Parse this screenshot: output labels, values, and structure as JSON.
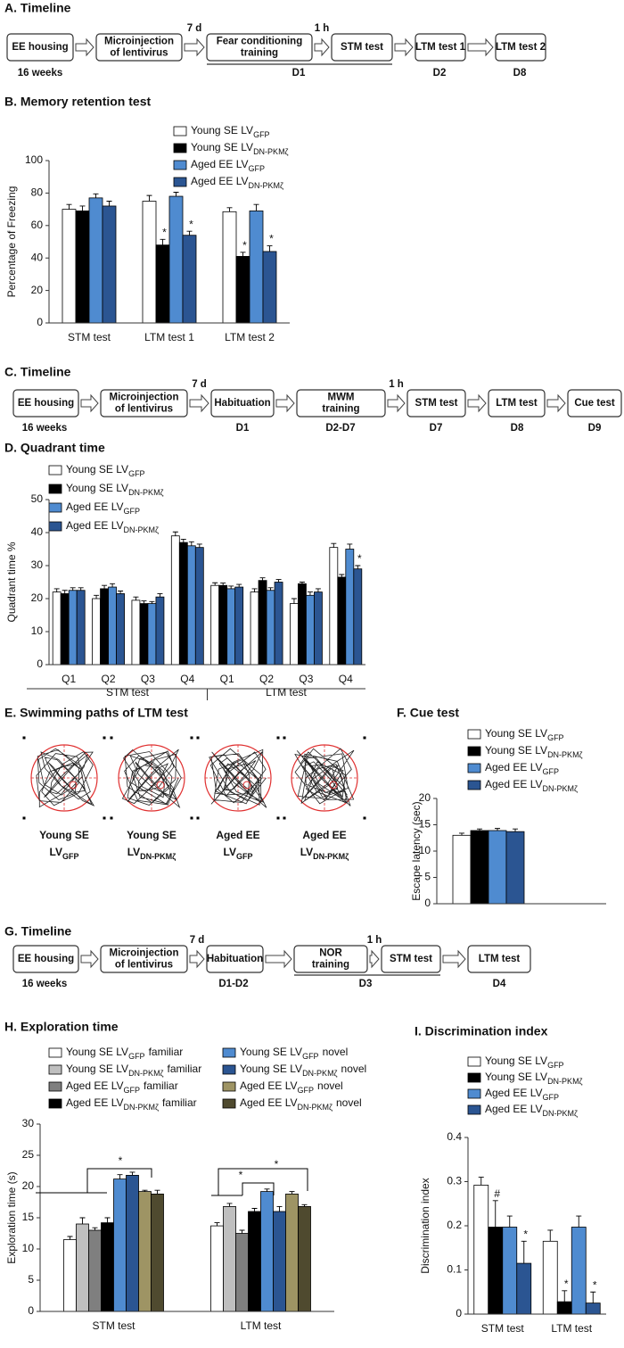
{
  "timelines": [
    {
      "title": "A. Timeline",
      "boxes": [
        [
          "EE housing"
        ],
        [
          "Microinjection",
          "of lentivirus"
        ],
        [
          "Fear conditioning",
          "training"
        ],
        [
          "STM test"
        ],
        [
          "LTM test 1"
        ],
        [
          "LTM test 2"
        ]
      ],
      "arrow_labels": [
        null,
        "7 d",
        "1 h",
        null,
        null
      ],
      "below": [
        "16 weeks",
        "D1",
        "D2",
        "D8"
      ]
    },
    {
      "title": "C. Timeline",
      "boxes": [
        [
          "EE housing"
        ],
        [
          "Microinjection",
          "of lentivirus"
        ],
        [
          "Habituation"
        ],
        [
          "MWM",
          "training"
        ],
        [
          "STM test"
        ],
        [
          "LTM test"
        ],
        [
          "Cue test"
        ]
      ],
      "arrow_labels": [
        null,
        "7 d",
        null,
        "1 h",
        null,
        null
      ],
      "below": [
        "16 weeks",
        "D1",
        "D2-D7",
        "D7",
        "D8",
        "D9"
      ]
    },
    {
      "title": "G. Timeline",
      "boxes": [
        [
          "EE housing"
        ],
        [
          "Microinjection",
          "of lentivirus"
        ],
        [
          "Habituation"
        ],
        [
          "NOR",
          "training"
        ],
        [
          "STM test"
        ],
        [
          "LTM test"
        ]
      ],
      "arrow_labels": [
        null,
        "7 d",
        null,
        "1 h",
        null
      ],
      "below": [
        "16 weeks",
        "D1-D2",
        "D3",
        "D4"
      ]
    }
  ],
  "swim_paths": {
    "title": "E. Swimming paths of LTM test",
    "labels": [
      {
        "line1": "Young  SE",
        "line2": "LV",
        "sub": "GFP"
      },
      {
        "line1": "Young  SE",
        "line2": "LV",
        "sub": "DN-PKMζ"
      },
      {
        "line1": "Aged EE",
        "line2": "LV",
        "sub": "GFP"
      },
      {
        "line1": "Aged EE",
        "line2": "LV",
        "sub": "DN-PKMζ"
      }
    ]
  },
  "chart_data": [
    {
      "type": "bar",
      "title": "B. Memory retention test",
      "y_label": "Percentage of Freezing",
      "categories": [
        "STM test",
        "LTM test 1",
        "LTM test 2"
      ],
      "ylim": [
        0,
        100
      ],
      "yticks": [
        0,
        20,
        40,
        60,
        80,
        100
      ],
      "series": [
        {
          "name": "Young SE LV",
          "name_sub": "GFP",
          "color": "#ffffff",
          "values": [
            70,
            75,
            68.5
          ],
          "errors": [
            3,
            3.5,
            2.5
          ]
        },
        {
          "name": "Young SE LV",
          "name_sub": "DN-PKMζ",
          "color": "#000000",
          "values": [
            69,
            48,
            41
          ],
          "errors": [
            3,
            3.5,
            2.5
          ],
          "annotations": [
            null,
            "*",
            "*"
          ]
        },
        {
          "name": "Aged EE LV",
          "name_sub": "GFP",
          "color": "#4f8bd0",
          "values": [
            77,
            78,
            69
          ],
          "errors": [
            2.5,
            2.5,
            4
          ]
        },
        {
          "name": "Aged EE LV",
          "name_sub": "DN-PKMζ",
          "color": "#2b5592",
          "values": [
            72,
            54,
            44
          ],
          "errors": [
            3,
            2.5,
            3.5
          ],
          "annotations": [
            null,
            "*",
            "*"
          ]
        }
      ]
    },
    {
      "type": "bar",
      "title": "D. Quadrant time",
      "y_label": "Quadrant time %",
      "categories": [
        "Q1",
        "Q2",
        "Q3",
        "Q4",
        "Q1",
        "Q2",
        "Q3",
        "Q4"
      ],
      "group_labels": [
        "STM test",
        "LTM test"
      ],
      "ylim": [
        0,
        50
      ],
      "yticks": [
        0,
        10,
        20,
        30,
        40,
        50
      ],
      "series": [
        {
          "name": "Young SE LV",
          "name_sub": "GFP",
          "color": "#ffffff",
          "values": [
            22,
            20,
            19.5,
            39,
            24,
            22,
            18.5,
            35.5
          ],
          "errors": [
            1,
            1,
            1,
            1.2,
            0.8,
            1,
            1.5,
            1.2
          ]
        },
        {
          "name": "Young SE LV",
          "name_sub": "DN-PKMζ",
          "color": "#000000",
          "values": [
            21.5,
            23,
            18.5,
            37,
            24,
            25.5,
            24.5,
            26.5
          ],
          "errors": [
            1,
            1,
            0.8,
            1,
            0.7,
            0.8,
            0.5,
            0.8
          ]
        },
        {
          "name": "Aged EE LV",
          "name_sub": "GFP",
          "color": "#4f8bd0",
          "values": [
            22.5,
            23.5,
            18.5,
            36,
            23,
            22.5,
            21,
            35
          ],
          "errors": [
            0.8,
            1,
            0.6,
            1.2,
            0.8,
            0.8,
            1,
            1.5
          ]
        },
        {
          "name": "Aged EE LV",
          "name_sub": "DN-PKMζ",
          "color": "#2b5592",
          "values": [
            22.5,
            21.5,
            20.5,
            35.5,
            23.5,
            25,
            22,
            29
          ],
          "errors": [
            0.8,
            0.8,
            1,
            1,
            0.8,
            0.8,
            1,
            1
          ],
          "annotations": [
            null,
            null,
            null,
            null,
            null,
            null,
            null,
            "*"
          ]
        }
      ]
    },
    {
      "type": "bar",
      "title": "F. Cue test",
      "y_label": "Escape latency (sec)",
      "categories": [
        null
      ],
      "ylim": [
        0,
        20
      ],
      "yticks": [
        0,
        5,
        10,
        15,
        20
      ],
      "series": [
        {
          "name": "Young SE LV",
          "name_sub": "GFP",
          "color": "#ffffff",
          "values": [
            13
          ],
          "errors": [
            0.4
          ]
        },
        {
          "name": "Young SE LV",
          "name_sub": "DN-PKMζ",
          "color": "#000000",
          "values": [
            13.9
          ],
          "errors": [
            0.3
          ]
        },
        {
          "name": "Aged EE LV",
          "name_sub": "GFP",
          "color": "#4f8bd0",
          "values": [
            13.9
          ],
          "errors": [
            0.4
          ]
        },
        {
          "name": "Aged EE LV",
          "name_sub": "DN-PKMζ",
          "color": "#2b5592",
          "values": [
            13.7
          ],
          "errors": [
            0.5
          ]
        }
      ]
    },
    {
      "type": "bar",
      "title": "H. Exploration time",
      "y_label": "Exploration time (s)",
      "categories": [
        "STM test",
        "LTM test"
      ],
      "ylim": [
        0,
        30
      ],
      "yticks": [
        0,
        5,
        10,
        15,
        20,
        25,
        30
      ],
      "annotations": [
        "*",
        "*",
        "*"
      ],
      "series": [
        {
          "name": "Young SE LV",
          "name_sub": "GFP",
          "name_suffix": "familiar",
          "color": "#ffffff",
          "values": [
            11.5,
            13.7
          ],
          "errors": [
            0.5,
            0.5
          ]
        },
        {
          "name": "Young SE LV",
          "name_sub": "DN-PKMζ",
          "name_suffix": "familiar",
          "color": "#bfbfbf",
          "values": [
            14,
            16.8
          ],
          "errors": [
            1,
            0.5
          ]
        },
        {
          "name": "Aged EE LV",
          "name_sub": "GFP",
          "name_suffix": "familiar",
          "color": "#7f7f7f",
          "values": [
            13,
            12.5
          ],
          "errors": [
            0.4,
            0.5
          ]
        },
        {
          "name": "Aged EE LV",
          "name_sub": "DN-PKMζ",
          "name_suffix": "familiar",
          "color": "#000000",
          "values": [
            14.2,
            16
          ],
          "errors": [
            0.8,
            0.5
          ]
        },
        {
          "name": "Young SE LV",
          "name_sub": "GFP",
          "name_suffix": "novel",
          "color": "#4f8bd0",
          "values": [
            21.2,
            19.2
          ],
          "errors": [
            0.7,
            0.4
          ]
        },
        {
          "name": "Young SE LV",
          "name_sub": "DN-PKMζ",
          "name_suffix": "novel",
          "color": "#2b5592",
          "values": [
            21.8,
            16
          ],
          "errors": [
            0.5,
            0.8
          ]
        },
        {
          "name": "Aged EE LV",
          "name_sub": "GFP",
          "name_suffix": "novel",
          "color": "#9e9464",
          "values": [
            19.2,
            18.8
          ],
          "errors": [
            0.2,
            0.4
          ]
        },
        {
          "name": "Aged EE LV",
          "name_sub": "DN-PKMζ",
          "name_suffix": "novel",
          "color": "#4f4a2f",
          "values": [
            18.8,
            16.8
          ],
          "errors": [
            0.6,
            0.3
          ]
        }
      ]
    },
    {
      "type": "bar",
      "title": "I. Discrimination index",
      "y_label": "Discrimination index",
      "categories": [
        "STM test",
        "LTM test"
      ],
      "ylim": [
        0,
        0.4
      ],
      "yticks": [
        0,
        0.1,
        0.2,
        0.3,
        0.4
      ],
      "series": [
        {
          "name": "Young SE LV",
          "name_sub": "GFP",
          "color": "#ffffff",
          "values": [
            0.292,
            0.165
          ],
          "errors": [
            0.018,
            0.025
          ]
        },
        {
          "name": "Young SE LV",
          "name_sub": "DN-PKMζ",
          "color": "#000000",
          "values": [
            0.197,
            0.028
          ],
          "errors": [
            0.06,
            0.025
          ],
          "annotations": [
            "#",
            "*"
          ]
        },
        {
          "name": "Aged EE LV",
          "name_sub": "GFP",
          "color": "#4f8bd0",
          "values": [
            0.197,
            0.197
          ],
          "errors": [
            0.025,
            0.025
          ]
        },
        {
          "name": "Aged EE LV",
          "name_sub": "DN-PKMζ",
          "color": "#2b5592",
          "values": [
            0.115,
            0.025
          ],
          "errors": [
            0.05,
            0.025
          ],
          "annotations": [
            "*",
            "*"
          ]
        }
      ]
    }
  ]
}
